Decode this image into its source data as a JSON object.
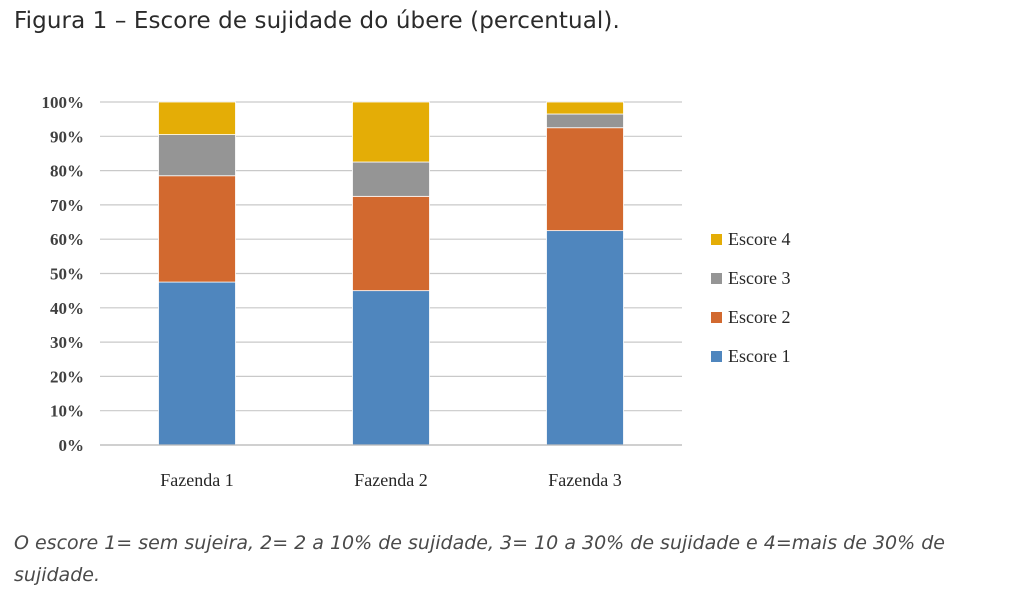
{
  "figure_title": "Figura 1 – Escore de sujidade do úbere (percentual).",
  "caption": "O escore 1= sem sujeira, 2= 2 a 10% de sujidade, 3= 10 a 30% de sujidade e 4=mais de 30% de sujidade.",
  "chart_data": {
    "type": "bar",
    "stacked": true,
    "categories": [
      "Fazenda 1",
      "Fazenda 2",
      "Fazenda 3"
    ],
    "series": [
      {
        "name": "Escore 1",
        "color": "#4f86be",
        "values": [
          47.5,
          45,
          62.5
        ]
      },
      {
        "name": "Escore 2",
        "color": "#d2692f",
        "values": [
          31,
          27.5,
          30
        ]
      },
      {
        "name": "Escore 3",
        "color": "#959595",
        "values": [
          12,
          10,
          4
        ]
      },
      {
        "name": "Escore 4",
        "color": "#e4ad06",
        "values": [
          9.5,
          17.5,
          3.5
        ]
      }
    ],
    "yticks": [
      "0%",
      "10%",
      "20%",
      "30%",
      "40%",
      "50%",
      "60%",
      "70%",
      "80%",
      "90%",
      "100%"
    ],
    "ylim": [
      0,
      100
    ],
    "grid": true,
    "legend_position": "right",
    "legend_order": [
      "Escore 4",
      "Escore 3",
      "Escore 2",
      "Escore 1"
    ]
  }
}
